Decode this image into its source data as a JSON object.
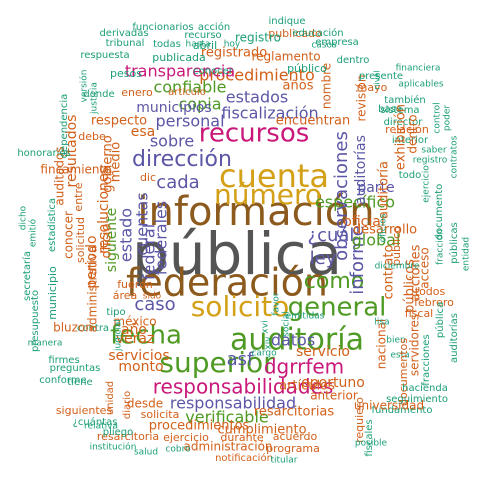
{
  "cloud": {
    "colors": {
      "gray": "#555555",
      "brown": "#8c5a1c",
      "gold": "#d4a017",
      "green": "#4e9a23",
      "magenta": "#c9187a",
      "purple": "#5b57a6",
      "orange": "#d2601a",
      "teal": "#1b9e77"
    },
    "words": [
      {
        "t": "pública",
        "c": "gray"
      },
      {
        "t": "información",
        "c": "brown"
      },
      {
        "t": "federación",
        "c": "brown"
      },
      {
        "t": "cuenta",
        "c": "gold"
      },
      {
        "t": "número",
        "c": "gold"
      },
      {
        "t": "solicito",
        "c": "gold"
      },
      {
        "t": "auditoría",
        "c": "green"
      },
      {
        "t": "superior",
        "c": "green"
      },
      {
        "t": "fecha",
        "c": "green"
      },
      {
        "t": "general",
        "c": "green"
      },
      {
        "t": "como",
        "c": "green"
      },
      {
        "t": "recursos",
        "c": "magenta"
      },
      {
        "t": "responsabilidades",
        "c": "magenta"
      },
      {
        "t": "dirección",
        "c": "purple"
      },
      {
        "t": "cada",
        "c": "purple"
      },
      {
        "t": "sobre",
        "c": "purple"
      },
      {
        "t": "personal",
        "c": "purple"
      },
      {
        "t": "fiscalización",
        "c": "purple"
      },
      {
        "t": "estados",
        "c": "purple"
      },
      {
        "t": "copia",
        "c": "green"
      },
      {
        "t": "confiable",
        "c": "green"
      },
      {
        "t": "municipios",
        "c": "purple"
      },
      {
        "t": "procedimiento",
        "c": "orange"
      },
      {
        "t": "transparencia",
        "c": "magenta"
      },
      {
        "t": "caso",
        "c": "purple"
      },
      {
        "t": "ley",
        "c": "purple"
      },
      {
        "t": "¿cuál",
        "c": "purple"
      },
      {
        "t": "asf",
        "c": "purple"
      },
      {
        "t": "dgrrfem",
        "c": "magenta"
      },
      {
        "t": "datos",
        "c": "purple"
      },
      {
        "t": "informe",
        "c": "purple"
      },
      {
        "t": "específico",
        "c": "green"
      },
      {
        "t": "oficial",
        "c": "orange"
      },
      {
        "t": "global",
        "c": "green"
      },
      {
        "t": "parte",
        "c": "purple"
      },
      {
        "t": "responsabilidad",
        "c": "purple"
      },
      {
        "t": "verificable",
        "c": "green"
      },
      {
        "t": "servicios",
        "c": "orange"
      },
      {
        "t": "veraz",
        "c": "orange"
      },
      {
        "t": "monto",
        "c": "orange"
      },
      {
        "t": "año",
        "c": "orange"
      },
      {
        "t": "oportuno",
        "c": "orange"
      },
      {
        "t": "servicio",
        "c": "orange"
      },
      {
        "t": "cuentas",
        "c": "purple"
      },
      {
        "t": "federales",
        "c": "purple"
      },
      {
        "t": "federal",
        "c": "purple"
      },
      {
        "t": "estado",
        "c": "purple"
      },
      {
        "t": "siguiente",
        "c": "green"
      },
      {
        "t": "observaciones",
        "c": "purple"
      },
      {
        "t": "auditorías",
        "c": "purple"
      },
      {
        "t": "esa",
        "c": "orange"
      },
      {
        "t": "respecto",
        "c": "orange"
      },
      {
        "t": "registrado",
        "c": "orange"
      },
      {
        "t": "reglamento",
        "c": "orange"
      },
      {
        "t": "encuentran",
        "c": "orange"
      },
      {
        "t": "años",
        "c": "orange"
      },
      {
        "t": "nombre",
        "c": "orange"
      },
      {
        "t": "publicado",
        "c": "orange"
      },
      {
        "t": "público",
        "c": "teal"
      },
      {
        "t": "registro",
        "c": "teal"
      },
      {
        "t": "artículos",
        "c": "orange"
      },
      {
        "t": "resarcitorias",
        "c": "orange"
      },
      {
        "t": "procedimientos",
        "c": "orange"
      },
      {
        "t": "cumplimiento",
        "c": "orange"
      },
      {
        "t": "administración",
        "c": "orange"
      },
      {
        "t": "programa",
        "c": "orange"
      },
      {
        "t": "durante",
        "c": "orange"
      },
      {
        "t": "acuerdo",
        "c": "orange"
      },
      {
        "t": "ejercicio",
        "c": "orange"
      },
      {
        "t": "resarcitoria",
        "c": "orange"
      },
      {
        "t": "institución",
        "c": "teal"
      },
      {
        "t": "salud",
        "c": "teal"
      },
      {
        "t": "cobro",
        "c": "teal"
      },
      {
        "t": "notificación",
        "c": "orange"
      },
      {
        "t": "titular",
        "c": "teal"
      },
      {
        "t": "desde",
        "c": "orange"
      },
      {
        "t": "solicita",
        "c": "orange"
      },
      {
        "t": "diario",
        "c": "orange"
      },
      {
        "t": "unidad",
        "c": "orange"
      },
      {
        "t": "pliego",
        "c": "teal"
      },
      {
        "t": "¿cuántas",
        "c": "teal"
      },
      {
        "t": "relativa",
        "c": "teal"
      },
      {
        "t": "siguientes",
        "c": "orange"
      },
      {
        "t": "conforme",
        "c": "teal"
      },
      {
        "t": "preguntas",
        "c": "teal"
      },
      {
        "t": "firmes",
        "c": "teal"
      },
      {
        "t": "tiene",
        "c": "teal"
      },
      {
        "t": "contra",
        "c": "teal"
      },
      {
        "t": "méxico",
        "c": "orange"
      },
      {
        "t": "área",
        "c": "orange"
      },
      {
        "t": "sido",
        "c": "orange"
      },
      {
        "t": "fueron",
        "c": "orange"
      },
      {
        "t": "tipo",
        "c": "teal"
      },
      {
        "t": "periodo",
        "c": "orange"
      },
      {
        "t": "resoluciones",
        "c": "orange"
      },
      {
        "t": "oficio",
        "c": "orange"
      },
      {
        "t": "medio",
        "c": "orange"
      },
      {
        "t": "dic",
        "c": "orange"
      },
      {
        "t": "gobierno",
        "c": "orange"
      },
      {
        "t": "fincamiento",
        "c": "orange"
      },
      {
        "t": "debe",
        "c": "orange"
      },
      {
        "t": "entre",
        "c": "orange"
      },
      {
        "t": "resultados",
        "c": "orange"
      },
      {
        "t": "administrativa",
        "c": "orange"
      },
      {
        "t": "conocer",
        "c": "orange"
      },
      {
        "t": "solicitud",
        "c": "orange"
      },
      {
        "t": "bluzon",
        "c": "orange"
      },
      {
        "t": "municipio",
        "c": "teal"
      },
      {
        "t": "presupuesto",
        "c": "teal"
      },
      {
        "t": "secretaría",
        "c": "teal"
      },
      {
        "t": "manera",
        "c": "teal"
      },
      {
        "t": "estadística",
        "c": "teal"
      },
      {
        "t": "emitió",
        "c": "teal"
      },
      {
        "t": "dicho",
        "c": "teal"
      },
      {
        "t": "honorarios",
        "c": "teal"
      },
      {
        "t": "auditados",
        "c": "orange"
      },
      {
        "t": "dependencia",
        "c": "teal"
      },
      {
        "t": "donde",
        "c": "teal"
      },
      {
        "t": "enero",
        "c": "orange"
      },
      {
        "t": "pesos",
        "c": "teal"
      },
      {
        "t": "artículo",
        "c": "orange"
      },
      {
        "t": "publicada",
        "c": "teal"
      },
      {
        "t": "abril",
        "c": "teal"
      },
      {
        "t": "todas",
        "c": "teal"
      },
      {
        "t": "tribunal",
        "c": "teal"
      },
      {
        "t": "respuesta",
        "c": "teal"
      },
      {
        "t": "versión",
        "c": "teal"
      },
      {
        "t": "justicia",
        "c": "teal"
      },
      {
        "t": "funcionarios",
        "c": "teal"
      },
      {
        "t": "derivadas",
        "c": "teal"
      },
      {
        "t": "acción",
        "c": "teal"
      },
      {
        "t": "conocer",
        "c": "teal"
      },
      {
        "t": "recurso",
        "c": "teal"
      },
      {
        "t": "hasta",
        "c": "teal"
      },
      {
        "t": "hoy",
        "c": "teal"
      },
      {
        "t": "indique",
        "c": "teal"
      },
      {
        "t": "educación",
        "c": "teal"
      },
      {
        "t": "empresa",
        "c": "teal"
      },
      {
        "t": "casos",
        "c": "teal"
      },
      {
        "t": "dentro",
        "c": "teal"
      },
      {
        "t": "revisión",
        "c": "orange"
      },
      {
        "t": "mayo",
        "c": "orange"
      },
      {
        "t": "presente",
        "c": "teal"
      },
      {
        "t": "financiera",
        "c": "teal"
      },
      {
        "t": "aplicables",
        "c": "teal"
      },
      {
        "t": "base",
        "c": "teal"
      },
      {
        "t": "sistema",
        "c": "teal"
      },
      {
        "t": "nivel",
        "c": "teal"
      },
      {
        "t": "también",
        "c": "teal"
      },
      {
        "t": "director",
        "c": "teal"
      },
      {
        "t": "relación",
        "c": "orange"
      },
      {
        "t": "interior",
        "c": "teal"
      },
      {
        "t": "registro",
        "c": "teal"
      },
      {
        "t": "saber",
        "c": "teal"
      },
      {
        "t": "control",
        "c": "teal"
      },
      {
        "t": "poder",
        "c": "teal"
      },
      {
        "t": "contratos",
        "c": "teal"
      },
      {
        "t": "ejercicio",
        "c": "teal"
      },
      {
        "t": "todo",
        "c": "teal"
      },
      {
        "t": "documento",
        "c": "teal"
      },
      {
        "t": "fracción",
        "c": "teal"
      },
      {
        "t": "públicas",
        "c": "teal"
      },
      {
        "t": "entidad",
        "c": "teal"
      },
      {
        "t": "acciones",
        "c": "orange"
      },
      {
        "t": "acceso",
        "c": "orange"
      },
      {
        "t": "contrato",
        "c": "orange"
      },
      {
        "t": "desarrollo",
        "c": "orange"
      },
      {
        "t": "público",
        "c": "orange"
      },
      {
        "t": "públicos",
        "c": "orange"
      },
      {
        "t": "dentro",
        "c": "orange"
      },
      {
        "t": "exhibición",
        "c": "orange"
      },
      {
        "t": "auditoría",
        "c": "orange"
      },
      {
        "t": "diciembre",
        "c": "teal"
      },
      {
        "t": "oficios",
        "c": "teal"
      },
      {
        "t": "todos",
        "c": "orange"
      },
      {
        "t": "febrero",
        "c": "orange"
      },
      {
        "t": "fiscal",
        "c": "orange"
      },
      {
        "t": "nacional",
        "c": "orange"
      },
      {
        "t": "servidores",
        "c": "orange"
      },
      {
        "t": "emitidas",
        "c": "teal"
      },
      {
        "t": "lisa",
        "c": "teal"
      },
      {
        "t": "bien",
        "c": "teal"
      },
      {
        "t": "esta",
        "c": "teal"
      },
      {
        "t": "documentos",
        "c": "orange"
      },
      {
        "t": "fracciones",
        "c": "teal"
      },
      {
        "t": "pública",
        "c": "teal"
      },
      {
        "t": "auditorías",
        "c": "teal"
      },
      {
        "t": "hacienda",
        "c": "teal"
      },
      {
        "t": "seguimiento",
        "c": "teal"
      },
      {
        "t": "fundamento",
        "c": "teal"
      },
      {
        "t": "universidad",
        "c": "orange"
      },
      {
        "t": "requiero",
        "c": "orange"
      },
      {
        "t": "fiscales",
        "c": "teal"
      },
      {
        "t": "anterior",
        "c": "orange"
      },
      {
        "t": "posible",
        "c": "teal"
      },
      {
        "t": "cargo",
        "c": "teal"
      },
      {
        "t": "favor",
        "c": "teal"
      },
      {
        "t": "social",
        "c": "teal"
      },
      {
        "t": "xvi",
        "c": "teal"
      },
      {
        "t": "xiv",
        "c": "teal"
      },
      {
        "t": "judicial",
        "c": "teal"
      }
    ]
  }
}
